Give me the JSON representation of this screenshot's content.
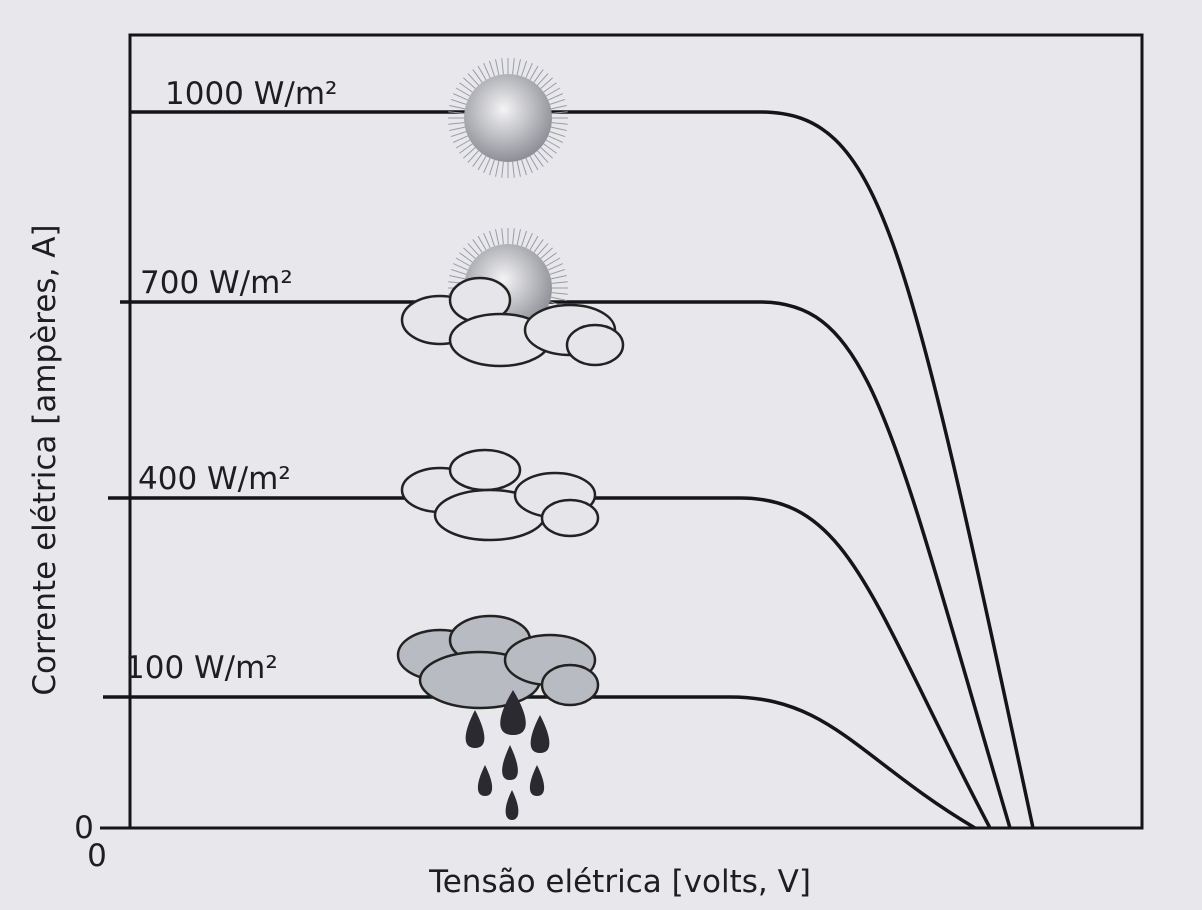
{
  "axes": {
    "y_label": "Corrente elétrica [ampères, A]",
    "x_label": "Tensão elétrica [volts, V]",
    "y_origin": "0",
    "x_origin": "0"
  },
  "curves": [
    {
      "label": "1000 W/m²"
    },
    {
      "label": "700 W/m²"
    },
    {
      "label": "400 W/m²"
    },
    {
      "label": "100 W/m²"
    }
  ]
}
